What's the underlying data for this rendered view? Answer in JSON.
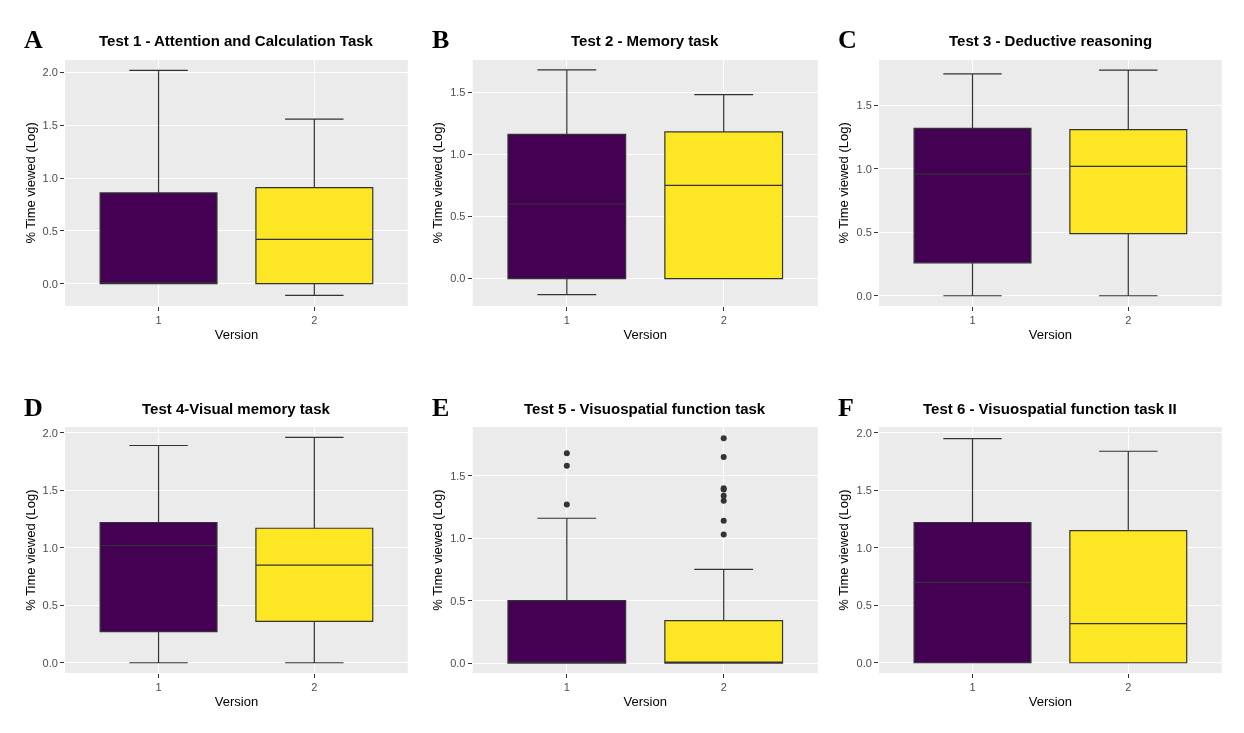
{
  "chart_data": [
    {
      "type": "box",
      "title": "Test 1 - Attention and Calculation Task",
      "annotations": [
        "A"
      ],
      "xlabel": "Version",
      "ylabel": "% Time viewed (Log)",
      "categories": [
        "1",
        "2"
      ],
      "colors": [
        "#440154",
        "#fde725"
      ],
      "grid": true,
      "ylim": [
        -0.21,
        2.12
      ],
      "yticks": [
        {
          "value": 0,
          "label": "0.0"
        },
        {
          "value": 0.5,
          "label": "0.5"
        },
        {
          "value": 1,
          "label": "1.0"
        },
        {
          "value": 1.5,
          "label": "1.5"
        },
        {
          "value": 2,
          "label": "2.0"
        }
      ],
      "boxes": [
        {
          "low": 0,
          "q1": 0,
          "median": 0,
          "q3": 0.86,
          "high": 2.02
        },
        {
          "low": -0.11,
          "q1": 0,
          "median": 0.42,
          "q3": 0.91,
          "high": 1.56
        }
      ]
    },
    {
      "type": "box",
      "title": "Test 2 - Memory task",
      "annotations": [
        "B"
      ],
      "xlabel": "Version",
      "ylabel": "% Time viewed (Log)",
      "categories": [
        "1",
        "2"
      ],
      "colors": [
        "#440154",
        "#fde725"
      ],
      "grid": true,
      "ylim": [
        -0.22,
        1.76
      ],
      "yticks": [
        {
          "value": 0,
          "label": "0.0"
        },
        {
          "value": 0.5,
          "label": "0.5"
        },
        {
          "value": 1,
          "label": "1.0"
        },
        {
          "value": 1.5,
          "label": "1.5"
        }
      ],
      "boxes": [
        {
          "low": -0.13,
          "q1": 0,
          "median": 0.6,
          "q3": 1.16,
          "high": 1.68
        },
        {
          "low": 0,
          "q1": 0,
          "median": 0.75,
          "q3": 1.18,
          "high": 1.48
        }
      ]
    },
    {
      "type": "box",
      "title": "Test 3 - Deductive reasoning",
      "annotations": [
        "C"
      ],
      "xlabel": "Version",
      "ylabel": "% Time viewed (Log)",
      "categories": [
        "1",
        "2"
      ],
      "colors": [
        "#440154",
        "#fde725"
      ],
      "grid": true,
      "ylim": [
        -0.08,
        1.86
      ],
      "yticks": [
        {
          "value": 0,
          "label": "0.0"
        },
        {
          "value": 0.5,
          "label": "0.5"
        },
        {
          "value": 1,
          "label": "1.0"
        },
        {
          "value": 1.5,
          "label": "1.5"
        }
      ],
      "boxes": [
        {
          "low": 0,
          "q1": 0.26,
          "median": 0.96,
          "q3": 1.32,
          "high": 1.75
        },
        {
          "low": 0,
          "q1": 0.49,
          "median": 1.02,
          "q3": 1.31,
          "high": 1.78
        }
      ]
    },
    {
      "type": "box",
      "title": "Test 4-Visual memory task",
      "annotations": [
        "D"
      ],
      "xlabel": "Version",
      "ylabel": "% Time viewed (Log)",
      "categories": [
        "1",
        "2"
      ],
      "colors": [
        "#440154",
        "#fde725"
      ],
      "grid": true,
      "ylim": [
        -0.09,
        2.05
      ],
      "yticks": [
        {
          "value": 0,
          "label": "0.0"
        },
        {
          "value": 0.5,
          "label": "0.5"
        },
        {
          "value": 1,
          "label": "1.0"
        },
        {
          "value": 1.5,
          "label": "1.5"
        },
        {
          "value": 2,
          "label": "2.0"
        }
      ],
      "boxes": [
        {
          "low": 0,
          "q1": 0.27,
          "median": 1.02,
          "q3": 1.22,
          "high": 1.89
        },
        {
          "low": 0,
          "q1": 0.36,
          "median": 0.85,
          "q3": 1.17,
          "high": 1.96
        }
      ]
    },
    {
      "type": "box",
      "title": "Test 5 - Visuospatial function task",
      "annotations": [
        "E"
      ],
      "xlabel": "Version",
      "ylabel": "% Time viewed (Log)",
      "categories": [
        "1",
        "2"
      ],
      "colors": [
        "#440154",
        "#fde725"
      ],
      "grid": true,
      "ylim": [
        -0.08,
        1.89
      ],
      "yticks": [
        {
          "value": 0,
          "label": "0.0"
        },
        {
          "value": 0.5,
          "label": "0.5"
        },
        {
          "value": 1,
          "label": "1.0"
        },
        {
          "value": 1.5,
          "label": "1.5"
        }
      ],
      "boxes": [
        {
          "low": 0,
          "q1": 0,
          "median": 0,
          "q3": 0.5,
          "high": 1.16,
          "outliers": [
            1.68,
            1.58,
            1.27
          ]
        },
        {
          "low": 0,
          "q1": 0,
          "median": 0,
          "q3": 0.34,
          "high": 0.75,
          "outliers": [
            1.8,
            1.65,
            1.4,
            1.39,
            1.34,
            1.3,
            1.14,
            1.03
          ]
        }
      ]
    },
    {
      "type": "box",
      "title": "Test 6 - Visuospatial function task II",
      "annotations": [
        "F"
      ],
      "xlabel": "Version",
      "ylabel": "% Time viewed (Log)",
      "categories": [
        "1",
        "2"
      ],
      "colors": [
        "#440154",
        "#fde725"
      ],
      "grid": true,
      "ylim": [
        -0.09,
        2.05
      ],
      "yticks": [
        {
          "value": 0,
          "label": "0.0"
        },
        {
          "value": 0.5,
          "label": "0.5"
        },
        {
          "value": 1,
          "label": "1.0"
        },
        {
          "value": 1.5,
          "label": "1.5"
        },
        {
          "value": 2,
          "label": "2.0"
        }
      ],
      "boxes": [
        {
          "low": 0,
          "q1": 0,
          "median": 0.7,
          "q3": 1.22,
          "high": 1.95
        },
        {
          "low": 0,
          "q1": 0,
          "median": 0.34,
          "q3": 1.15,
          "high": 1.84
        }
      ]
    }
  ]
}
